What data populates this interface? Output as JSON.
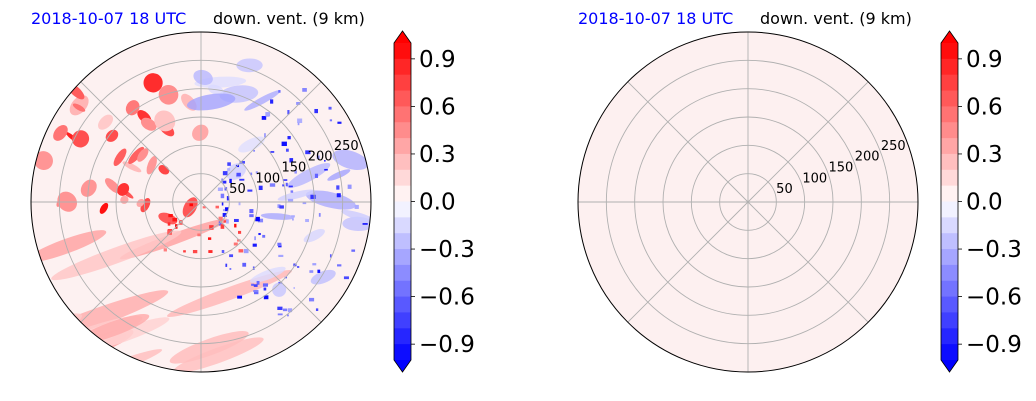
{
  "chart_data": [
    {
      "type": "heatmap",
      "projection": "polar",
      "title_left": "2018-10-07 18 UTC",
      "title_right": "down. vent. (9 km)",
      "title_left_color": "#0000ff",
      "radial_ticks": [
        "50",
        "100",
        "150",
        "200",
        "250"
      ],
      "radial_values": [
        50,
        100,
        150,
        200,
        250
      ],
      "rmax": 300,
      "grid": true,
      "angular_grid_deg": [
        0,
        45,
        90,
        135,
        180,
        225,
        270,
        315
      ],
      "field_description": "scattered positive (red) bands west/northwest, negative (blue) speckles east",
      "colorbar": {
        "ticks": [
          "0.9",
          "0.6",
          "0.3",
          "0.0",
          "−0.3",
          "−0.6",
          "−0.9"
        ],
        "tick_values": [
          0.9,
          0.6,
          0.3,
          0.0,
          -0.3,
          -0.6,
          -0.9
        ],
        "vmin": -1.0,
        "vmax": 1.0,
        "cmap": "bwr",
        "extend": "both"
      }
    },
    {
      "type": "heatmap",
      "projection": "polar",
      "title_left": "2018-10-07 18 UTC",
      "title_right": "down. vent. (9 km)",
      "title_left_color": "#0000ff",
      "radial_ticks": [
        "50",
        "100",
        "150",
        "200",
        "250"
      ],
      "radial_values": [
        50,
        100,
        150,
        200,
        250
      ],
      "rmax": 300,
      "grid": true,
      "angular_grid_deg": [
        0,
        45,
        90,
        135,
        180,
        225,
        270,
        315
      ],
      "field_description": "uniform near-zero field",
      "uniform_fill": "#fdf0f0",
      "colorbar": {
        "ticks": [
          "0.9",
          "0.6",
          "0.3",
          "0.0",
          "−0.3",
          "−0.6",
          "−0.9"
        ],
        "tick_values": [
          0.9,
          0.6,
          0.3,
          0.0,
          -0.3,
          -0.6,
          -0.9
        ],
        "vmin": -1.0,
        "vmax": 1.0,
        "cmap": "bwr",
        "extend": "both"
      }
    }
  ]
}
